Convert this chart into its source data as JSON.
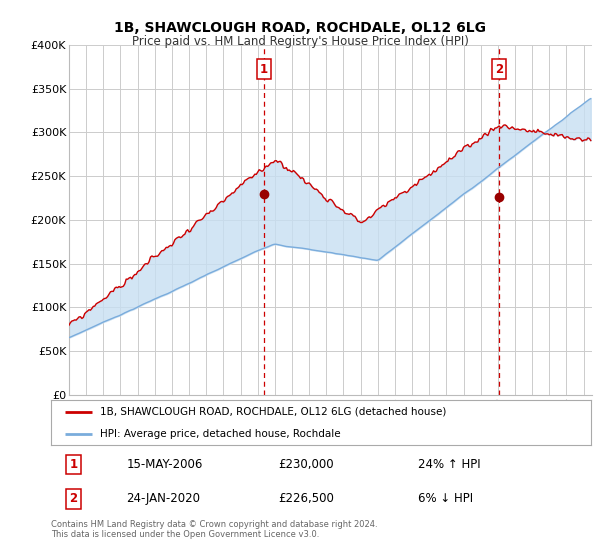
{
  "title": "1B, SHAWCLOUGH ROAD, ROCHDALE, OL12 6LG",
  "subtitle": "Price paid vs. HM Land Registry's House Price Index (HPI)",
  "ylabel_ticks": [
    "£0",
    "£50K",
    "£100K",
    "£150K",
    "£200K",
    "£250K",
    "£300K",
    "£350K",
    "£400K"
  ],
  "ylim": [
    0,
    400000
  ],
  "xlim_start": 1995.0,
  "xlim_end": 2025.5,
  "sale1_date": 2006.37,
  "sale1_price": 230000,
  "sale1_label": "1",
  "sale2_date": 2020.07,
  "sale2_price": 226500,
  "sale2_label": "2",
  "line_color_hpi": "#7aacdc",
  "fill_color_hpi": "#c8dff2",
  "line_color_price": "#cc0000",
  "sale_marker_color": "#990000",
  "vline_color": "#cc0000",
  "legend_label1": "1B, SHAWCLOUGH ROAD, ROCHDALE, OL12 6LG (detached house)",
  "legend_label2": "HPI: Average price, detached house, Rochdale",
  "table_row1": [
    "1",
    "15-MAY-2006",
    "£230,000",
    "24% ↑ HPI"
  ],
  "table_row2": [
    "2",
    "24-JAN-2020",
    "£226,500",
    "6% ↓ HPI"
  ],
  "footnote": "Contains HM Land Registry data © Crown copyright and database right 2024.\nThis data is licensed under the Open Government Licence v3.0.",
  "background_color": "#ffffff",
  "grid_color": "#cccccc"
}
